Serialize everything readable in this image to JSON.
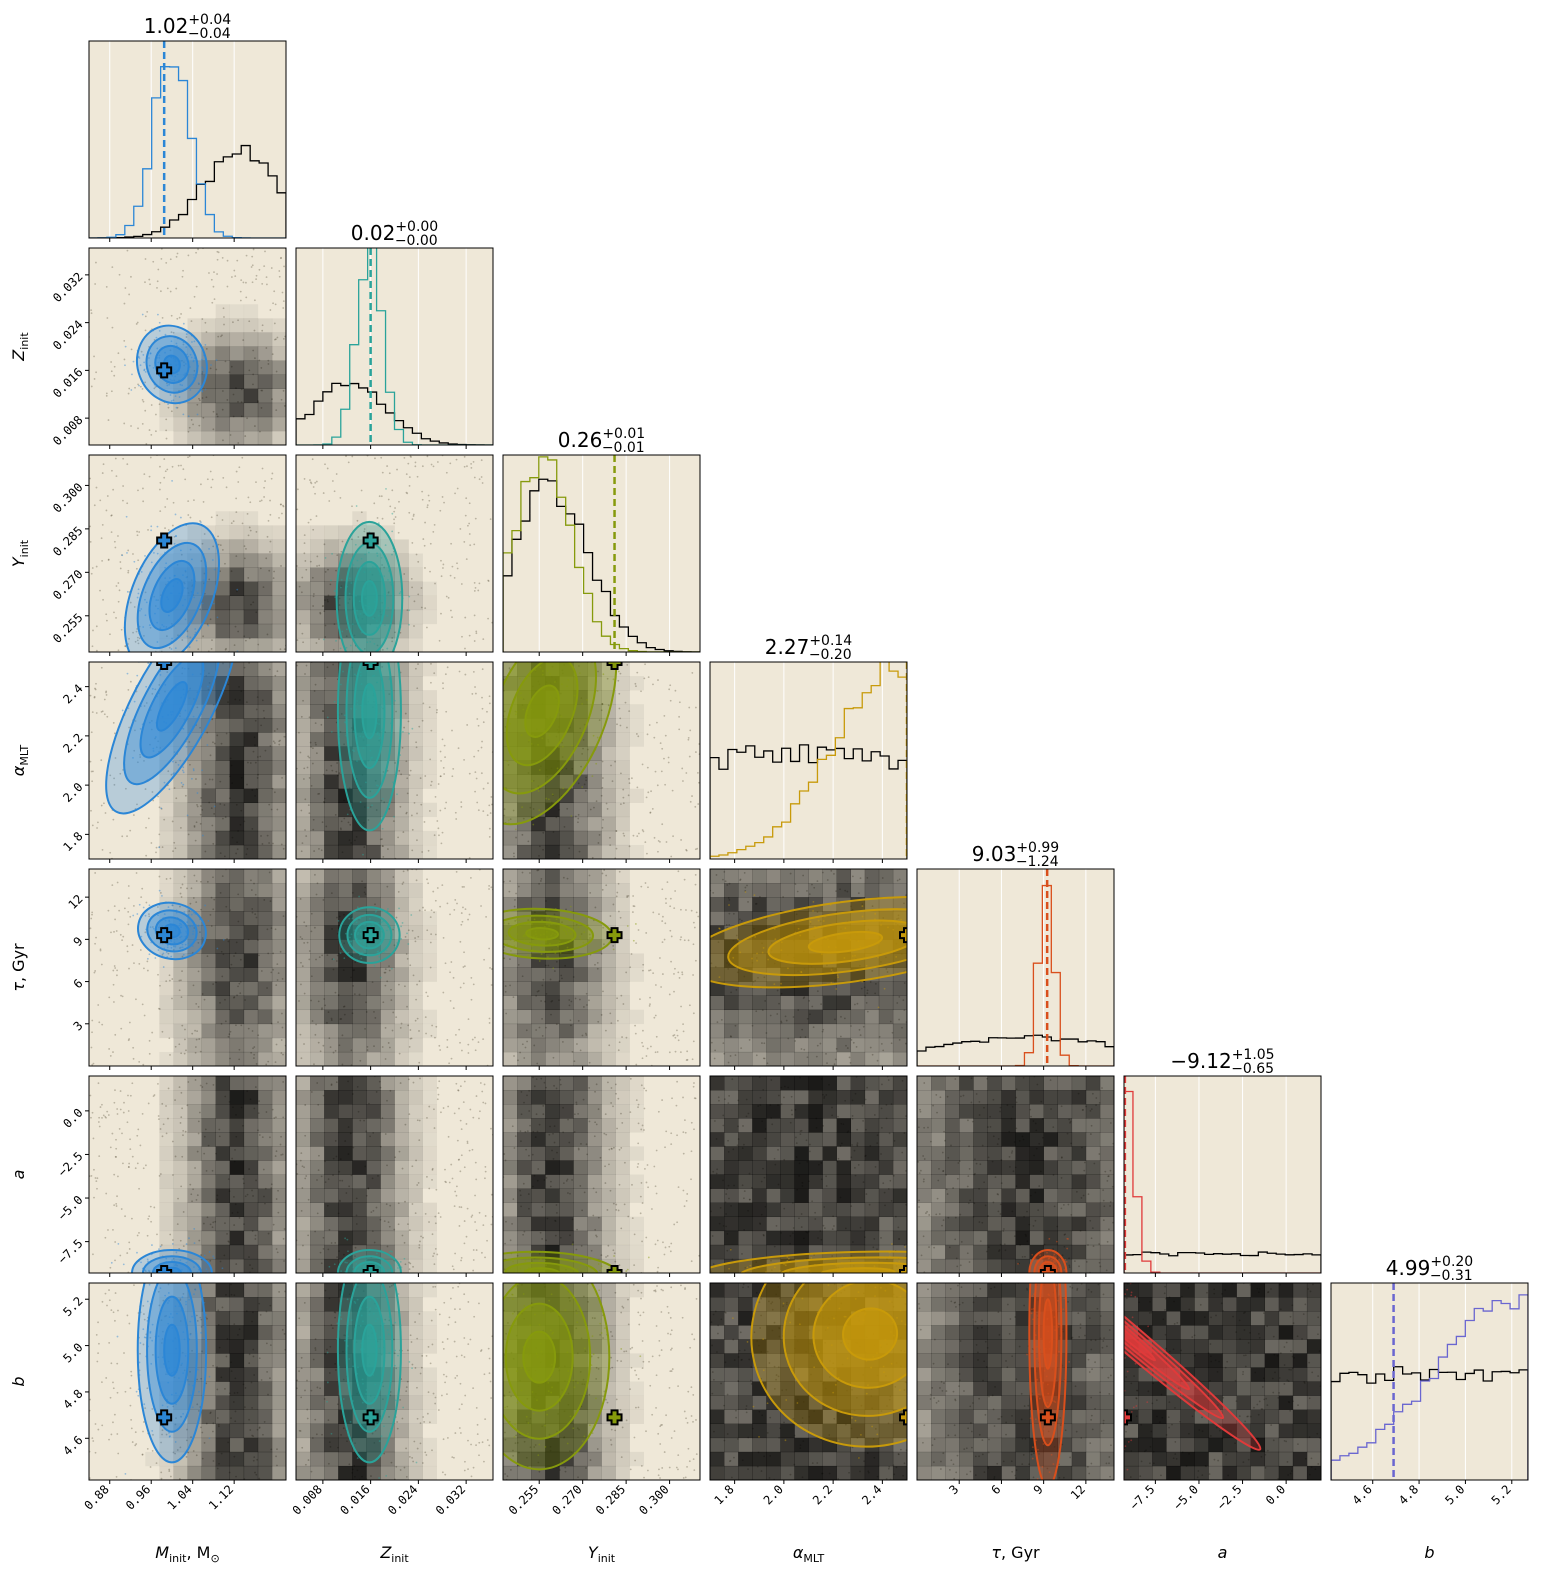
{
  "chart_data": {
    "type": "corner",
    "panel_background": "#efe8d8",
    "prior_color": "#000000",
    "parameters": [
      {
        "key": "M",
        "label_main": "M",
        "label_sub": "init",
        "label_suffix": ",  M",
        "label_suffix_sub": "⊙",
        "range": [
          0.84,
          1.22
        ],
        "ticks": [
          0.88,
          0.96,
          1.04,
          1.12
        ],
        "tick_labels": [
          "0.88",
          "0.96",
          "1.04",
          "1.12"
        ],
        "truth": 0.985,
        "color": "#2b86d6",
        "title": "1.02",
        "plus": "+0.04",
        "minus": "−0.04"
      },
      {
        "key": "Z",
        "label_main": "Z",
        "label_sub": "init",
        "label_suffix": "",
        "label_suffix_sub": "",
        "range": [
          0.0035,
          0.0365
        ],
        "ticks": [
          0.008,
          0.016,
          0.024,
          0.032
        ],
        "tick_labels": [
          "0.008",
          "0.016",
          "0.024",
          "0.032"
        ],
        "truth": 0.016,
        "color": "#2aa39a",
        "title": "0.02",
        "plus": "+0.00",
        "minus": "−0.00"
      },
      {
        "key": "Y",
        "label_main": "Y",
        "label_sub": "init",
        "label_suffix": "",
        "label_suffix_sub": "",
        "range": [
          0.2425,
          0.3105
        ],
        "ticks": [
          0.255,
          0.27,
          0.285,
          0.3
        ],
        "tick_labels": [
          "0.255",
          "0.270",
          "0.285",
          "0.300"
        ],
        "truth": 0.281,
        "color": "#869a0c",
        "title": "0.26",
        "plus": "+0.01",
        "minus": "−0.01"
      },
      {
        "key": "alpha",
        "label_main": "α",
        "label_sub": "MLT",
        "label_suffix": "",
        "label_suffix_sub": "",
        "range": [
          1.7,
          2.5
        ],
        "ticks": [
          1.8,
          2.0,
          2.2,
          2.4
        ],
        "tick_labels": [
          "1.8",
          "2.0",
          "2.2",
          "2.4"
        ],
        "truth": 2.5,
        "color": "#c89a0a",
        "title": "2.27",
        "plus": "+0.14",
        "minus": "−0.20"
      },
      {
        "key": "tau",
        "label_main": "τ",
        "label_sub": "",
        "label_suffix": ",  Gyr",
        "label_suffix_sub": "",
        "range": [
          0,
          14
        ],
        "ticks": [
          3,
          6,
          9,
          12
        ],
        "tick_labels": [
          "3",
          "6",
          "9",
          "12"
        ],
        "truth": 9.3,
        "color": "#d94f1c",
        "title": "9.03",
        "plus": "+0.99",
        "minus": "−1.24"
      },
      {
        "key": "a",
        "label_main": "a",
        "label_sub": "",
        "label_suffix": "",
        "label_suffix_sub": "",
        "range": [
          -9.3,
          2.0
        ],
        "ticks": [
          -7.5,
          -5.0,
          -2.5,
          0.0
        ],
        "tick_labels": [
          "−7.5",
          "−5.0",
          "−2.5",
          "0.0"
        ],
        "truth": -9.3,
        "color": "#e03a3a",
        "title": "−9.12",
        "plus": "+1.05",
        "minus": "−0.65"
      },
      {
        "key": "b",
        "label_main": "b",
        "label_sub": "",
        "label_suffix": "",
        "label_suffix_sub": "",
        "range": [
          4.42,
          5.27
        ],
        "ticks": [
          4.6,
          4.8,
          5.0,
          5.2
        ],
        "tick_labels": [
          "4.6",
          "4.8",
          "5.0",
          "5.2"
        ],
        "truth": 4.69,
        "color": "#6a66d0",
        "title": "4.99",
        "plus": "+0.20",
        "minus": "−0.31"
      }
    ],
    "marginals": {
      "M": {
        "post_mean": 1.0,
        "post_sd": 0.035,
        "prior_mean": 1.13,
        "prior_sd": 0.07,
        "prior_scale": 0.45,
        "marker": 0.985
      },
      "Z": {
        "post_mean": 0.0158,
        "post_sd": 0.0022,
        "prior_mean": 0.0125,
        "prior_sd": 0.006,
        "prior_scale": 0.33,
        "marker": 0.016
      },
      "Y": {
        "post_mean": 0.256,
        "post_sd": 0.01,
        "prior_mean": 0.259,
        "prior_sd": 0.013,
        "prior_scale": 0.85,
        "marker": 0.281
      },
      "alpha": {
        "post_mean": 2.45,
        "post_sd": 0.25,
        "prior_mean": 2.05,
        "prior_sd": 0.9,
        "prior_scale": 0.55,
        "marker": 2.5
      },
      "tau": {
        "post_mean": 9.2,
        "post_sd": 0.55,
        "prior_mean": 8.0,
        "prior_sd": 7.0,
        "prior_scale": 0.15,
        "marker": 9.25
      },
      "a": {
        "post_mean": -9.3,
        "post_sd": 0.55,
        "prior_mean": -3.5,
        "prior_sd": 50,
        "prior_scale": 0.1,
        "marker": -9.25
      },
      "b": {
        "post_mean": 5.3,
        "post_sd": 0.4,
        "prior_mean": 4.85,
        "prior_sd": 5,
        "prior_scale": 0.55,
        "marker": 4.69
      }
    },
    "contours": {
      "1-0": {
        "cx": 1.0,
        "cy": 0.017,
        "sx": 0.03,
        "sy": 0.003,
        "rho": 0.6
      },
      "2-0": {
        "cx": 1.0,
        "cy": 0.262,
        "sx": 0.035,
        "sy": 0.012,
        "rho": -0.4
      },
      "2-1": {
        "cx": 0.0158,
        "cy": 0.261,
        "sx": 0.0025,
        "sy": 0.012,
        "rho": 0.0
      },
      "3-0": {
        "cx": 1.0,
        "cy": 2.32,
        "sx": 0.035,
        "sy": 0.22,
        "rho": -0.35
      },
      "3-1": {
        "cx": 0.0158,
        "cy": 2.3,
        "sx": 0.0024,
        "sy": 0.22,
        "rho": 0.0
      },
      "3-2": {
        "cx": 0.256,
        "cy": 2.3,
        "sx": 0.01,
        "sy": 0.22,
        "rho": -0.4
      },
      "4-0": {
        "cx": 1.0,
        "cy": 9.6,
        "sx": 0.03,
        "sy": 0.9,
        "rho": -0.5
      },
      "4-1": {
        "cx": 0.0158,
        "cy": 9.3,
        "sx": 0.0023,
        "sy": 0.9,
        "rho": 0.0
      },
      "4-2": {
        "cx": 0.256,
        "cy": 9.4,
        "sx": 0.011,
        "sy": 0.8,
        "rho": -0.2
      },
      "4-3": {
        "cx": 2.25,
        "cy": 8.8,
        "sx": 0.3,
        "sy": 1.3,
        "rho": 0.9
      },
      "5-0": {
        "cx": 1.0,
        "cy": -9.3,
        "sx": 0.035,
        "sy": 0.6,
        "rho": 0.0
      },
      "5-1": {
        "cx": 0.0158,
        "cy": -9.3,
        "sx": 0.0024,
        "sy": 0.6,
        "rho": 0.0
      },
      "5-2": {
        "cx": 0.256,
        "cy": -9.3,
        "sx": 0.012,
        "sy": 0.55,
        "rho": -0.2
      },
      "5-3": {
        "cx": 2.3,
        "cy": -9.3,
        "sx": 0.3,
        "sy": 0.55,
        "rho": 0.3
      },
      "5-4": {
        "cx": 9.3,
        "cy": -9.3,
        "sx": 0.6,
        "sy": 0.6,
        "rho": 0.0
      },
      "6-0": {
        "cx": 1.0,
        "cy": 4.98,
        "sx": 0.03,
        "sy": 0.22,
        "rho": 0.0
      },
      "6-1": {
        "cx": 0.0158,
        "cy": 4.98,
        "sx": 0.0024,
        "sy": 0.22,
        "rho": 0.0
      },
      "6-2": {
        "cx": 0.255,
        "cy": 4.95,
        "sx": 0.011,
        "sy": 0.22,
        "rho": 0.0
      },
      "6-3": {
        "cx": 2.35,
        "cy": 5.05,
        "sx": 0.22,
        "sy": 0.22,
        "rho": 0.5
      },
      "6-4": {
        "cx": 9.3,
        "cy": 5.05,
        "sx": 0.6,
        "sy": 0.3,
        "rho": 0.0
      },
      "6-5": {
        "cx": -9.3,
        "cy": 5.05,
        "sx": 0.35,
        "sy": 0.35,
        "rho": 0.6
      }
    }
  }
}
